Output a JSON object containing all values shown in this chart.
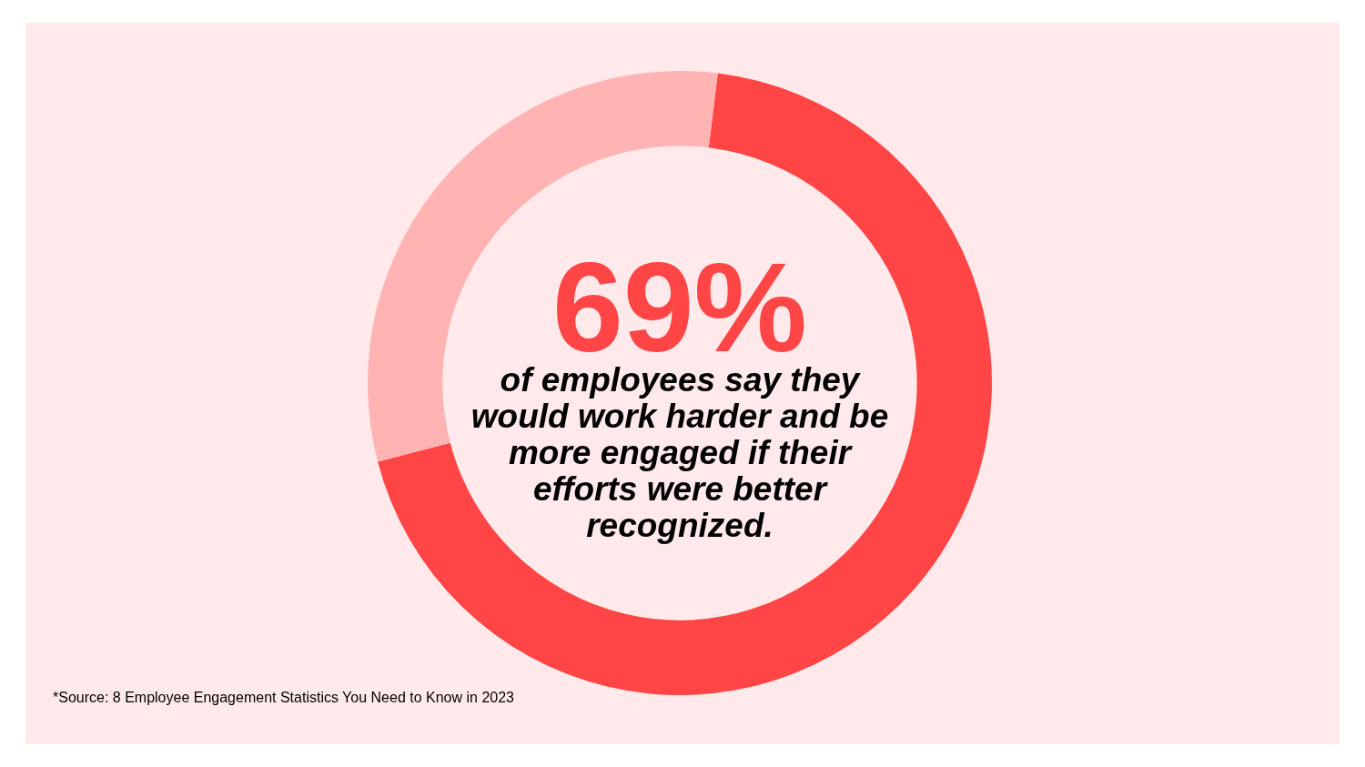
{
  "chart_data": {
    "type": "donut",
    "categories": [
      null,
      null
    ],
    "values": [
      69,
      31
    ],
    "colors": [
      "#ff4545",
      "#ffb3b3"
    ],
    "value_labels": [
      "69%",
      null
    ],
    "annotations": [
      "of employees say they would work harder and be more engaged if their efforts were better recognized.",
      "*Source: 8 Employee Engagement Statistics You Need to Know in 2023"
    ]
  }
}
